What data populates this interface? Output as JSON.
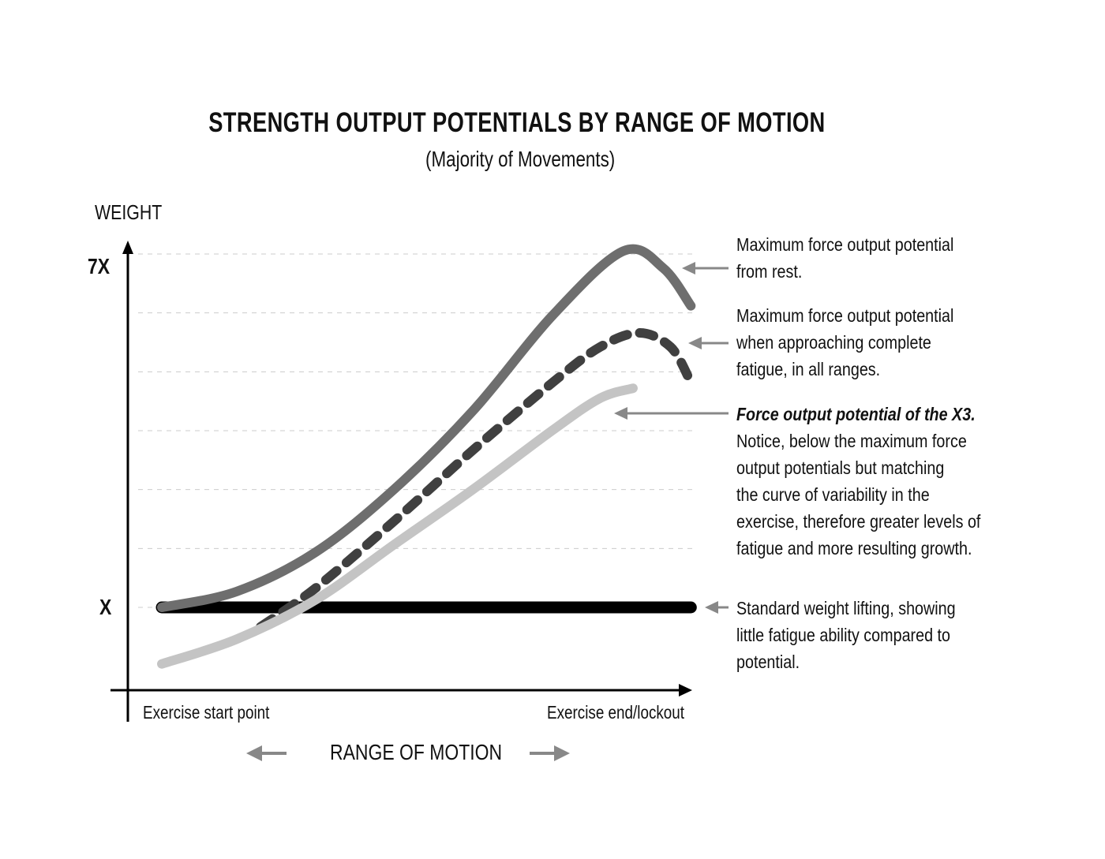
{
  "chart_data": {
    "type": "line",
    "title": "STRENGTH OUTPUT POTENTIALS BY RANGE OF MOTION",
    "subtitle": "(Majority of Movements)",
    "ylabel": "WEIGHT",
    "xlabel": "RANGE OF MOTION",
    "x_start_label": "Exercise start point",
    "x_end_label": "Exercise end/lockout",
    "xlim": [
      0,
      100
    ],
    "ylim": [
      0,
      7
    ],
    "yticks": [
      {
        "value": 7,
        "label": "7X"
      },
      {
        "value": 1,
        "label": "X"
      }
    ],
    "gridlines": [
      1,
      2,
      3,
      4,
      5,
      6,
      7
    ],
    "series": [
      {
        "name": "Maximum force output potential from rest",
        "color": "#6e6e6e",
        "style": "solid",
        "x": [
          0,
          14.1,
          29,
          43.8,
          58.7,
          73.6,
          86.9,
          94.4,
          99.6
        ],
        "y": [
          1.0,
          1.27,
          1.94,
          3.01,
          4.35,
          5.96,
          7.05,
          6.76,
          6.12
        ]
      },
      {
        "name": "Maximum force output potential when approaching complete fatigue",
        "color": "#404040",
        "style": "dashed",
        "x": [
          18.6,
          29,
          43.8,
          58.7,
          73.6,
          82.5,
          89.9,
          95.8,
          99.3
        ],
        "y": [
          0.67,
          1.33,
          2.47,
          3.68,
          4.82,
          5.42,
          5.66,
          5.42,
          4.88
        ]
      },
      {
        "name": "Force output potential of the X3",
        "color": "#c4c4c4",
        "style": "solid",
        "x": [
          0,
          14.1,
          29,
          43.8,
          58.7,
          73.6,
          82.5,
          88.7
        ],
        "y": [
          0.04,
          0.46,
          1.13,
          2.07,
          3.01,
          4.01,
          4.55,
          4.72
        ]
      },
      {
        "name": "Standard weight lifting",
        "color": "#000000",
        "style": "solid",
        "x": [
          0,
          99.6
        ],
        "y": [
          1,
          1
        ]
      }
    ]
  },
  "annotations": [
    {
      "target_series": 0,
      "lines": [
        "Maximum force output potential",
        "from rest."
      ]
    },
    {
      "target_series": 1,
      "lines": [
        "Maximum force output potential",
        "when approaching complete",
        "fatigue, in all ranges."
      ]
    },
    {
      "target_series": 2,
      "emphasis": "Force output potential of the X3.",
      "lines": [
        "Notice, below the maximum force",
        "output potentials but matching",
        "the curve of variability in the",
        "exercise, therefore greater levels of",
        "fatigue and more resulting growth."
      ]
    },
    {
      "target_series": 3,
      "lines": [
        "Standard weight lifting, showing",
        "little fatigue ability compared to",
        "potential."
      ]
    }
  ]
}
